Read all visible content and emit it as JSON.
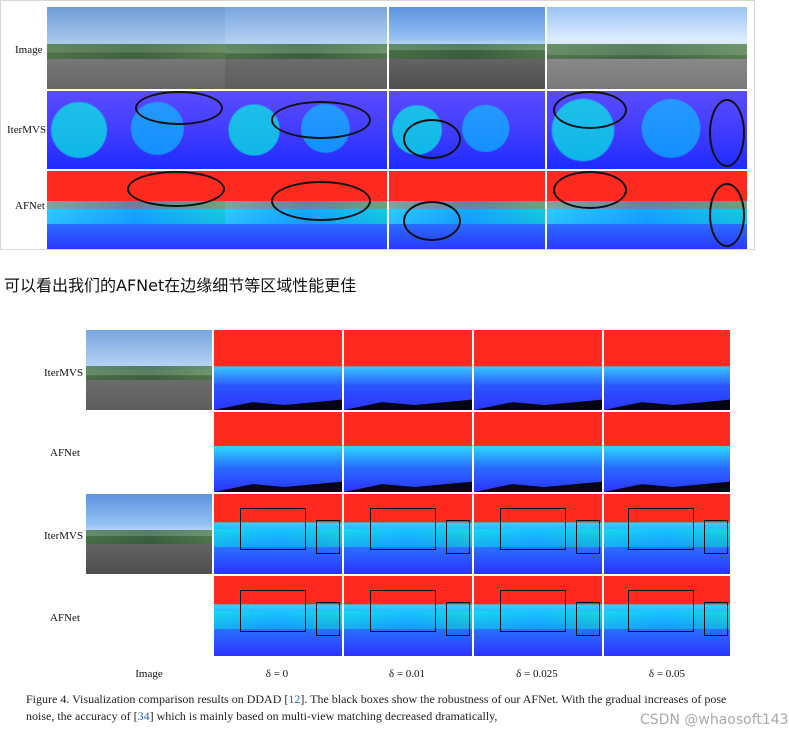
{
  "figure1": {
    "row_labels": [
      "Image",
      "IterMVS",
      "AFNet"
    ]
  },
  "sentence": "可以看出我们的AFNet在边缘细节等区域性能更佳",
  "figure4": {
    "row_labels": [
      "IterMVS",
      "AFNet",
      "IterMVS",
      "AFNet"
    ],
    "column_labels": [
      "Image",
      "δ = 0",
      "δ = 0.01",
      "δ = 0.025",
      "δ = 0.05"
    ],
    "caption": {
      "part1": "Figure 4. Visualization comparison results on DDAD [",
      "ref1": "12",
      "part2": "]. The black boxes show the robustness of our AFNet. With the gradual increases of pose noise, the accuracy of [",
      "ref2": "34",
      "part3": "] which is mainly based on multi-view matching decreased dramatically,"
    },
    "watermark": "CSDN @whaosoft143"
  }
}
